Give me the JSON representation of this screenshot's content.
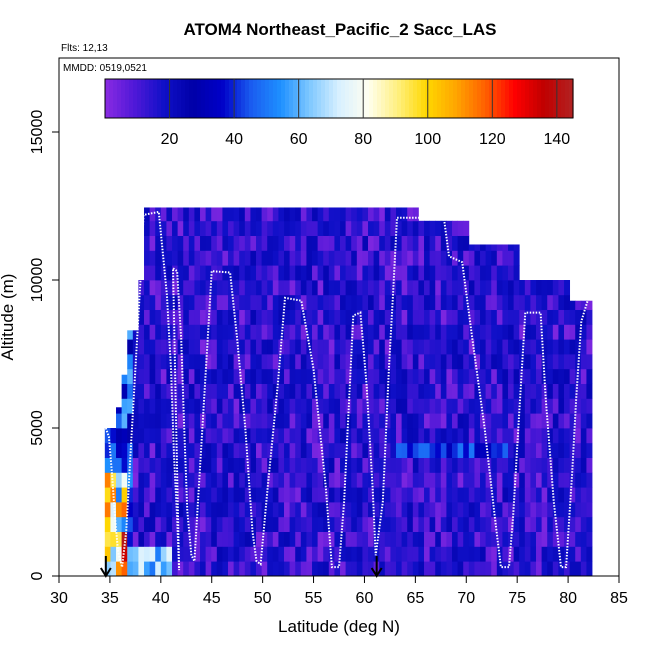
{
  "chart_data": {
    "type": "heatmap",
    "title": "ATOM4 Northeast_Pacific_2 Sacc_LAS",
    "flights_label": "Flts: 12,13",
    "dates_label": "MMDD: 0519,0521",
    "xlabel": "Latitude (deg N)",
    "ylabel": "Altitude (m)",
    "xlim": [
      30,
      85
    ],
    "ylim": [
      0,
      17500
    ],
    "x_ticks": [
      30,
      35,
      40,
      45,
      50,
      55,
      60,
      65,
      70,
      75,
      80,
      85
    ],
    "y_ticks": [
      0,
      5000,
      10000,
      15000
    ],
    "colorbar": {
      "range": [
        0,
        145
      ],
      "ticks": [
        20,
        40,
        60,
        80,
        100,
        120,
        140
      ],
      "colors": [
        "#8a2be2",
        "#5018d8",
        "#1010c8",
        "#0000a8",
        "#0000c8",
        "#1a5cf0",
        "#1e90ff",
        "#7fc8ff",
        "#d8f0ff",
        "#fffff0",
        "#fff080",
        "#ffd700",
        "#ffa500",
        "#ff6000",
        "#ff0000",
        "#c00000",
        "#b22222"
      ]
    },
    "profile_track": [
      [
        34.6,
        5000
      ],
      [
        34.9,
        4700
      ],
      [
        35.2,
        3500
      ],
      [
        35.5,
        2000
      ],
      [
        35.8,
        800
      ],
      [
        36.2,
        300
      ],
      [
        36.6,
        1500
      ],
      [
        37.0,
        4000
      ],
      [
        37.5,
        7000
      ],
      [
        38.0,
        10000
      ],
      [
        38.3,
        12200
      ],
      [
        39.8,
        12300
      ],
      [
        40.6,
        9500
      ],
      [
        41.0,
        7000
      ],
      [
        41.3,
        4000
      ],
      [
        41.6,
        2000
      ],
      [
        41.8,
        200
      ],
      [
        41.2,
        10400
      ],
      [
        41.6,
        10300
      ],
      [
        42.0,
        8000
      ],
      [
        42.3,
        5000
      ],
      [
        42.6,
        2200
      ],
      [
        43.0,
        700
      ],
      [
        43.3,
        500
      ],
      [
        44.0,
        4500
      ],
      [
        44.6,
        8000
      ],
      [
        45.0,
        10300
      ],
      [
        46.8,
        10250
      ],
      [
        47.5,
        8000
      ],
      [
        48.3,
        5000
      ],
      [
        49.0,
        1500
      ],
      [
        49.4,
        500
      ],
      [
        49.8,
        400
      ],
      [
        50.5,
        3000
      ],
      [
        51.5,
        6500
      ],
      [
        52.2,
        9400
      ],
      [
        53.8,
        9300
      ],
      [
        55.0,
        7000
      ],
      [
        56.2,
        3000
      ],
      [
        56.8,
        300
      ],
      [
        57.5,
        300
      ],
      [
        58.0,
        2500
      ],
      [
        58.5,
        6000
      ],
      [
        58.9,
        8800
      ],
      [
        59.6,
        8900
      ],
      [
        60.2,
        6500
      ],
      [
        60.8,
        3000
      ],
      [
        61.1,
        700
      ],
      [
        61.8,
        2500
      ],
      [
        62.4,
        7000
      ],
      [
        62.8,
        9500
      ],
      [
        63.2,
        12100
      ],
      [
        67.8,
        12100
      ],
      [
        68.3,
        10800
      ],
      [
        69.6,
        10600
      ],
      [
        70.6,
        8000
      ],
      [
        71.8,
        5000
      ],
      [
        72.8,
        2000
      ],
      [
        73.4,
        300
      ],
      [
        74.2,
        300
      ],
      [
        74.6,
        2000
      ],
      [
        75.2,
        5500
      ],
      [
        75.8,
        8900
      ],
      [
        77.3,
        8900
      ],
      [
        77.8,
        6000
      ],
      [
        78.6,
        2500
      ],
      [
        79.3,
        300
      ],
      [
        79.8,
        300
      ],
      [
        80.4,
        3500
      ],
      [
        80.8,
        6000
      ],
      [
        81.3,
        8600
      ],
      [
        82.0,
        9400
      ]
    ],
    "arrows_at_latitude": [
      34.6,
      61.2
    ]
  }
}
